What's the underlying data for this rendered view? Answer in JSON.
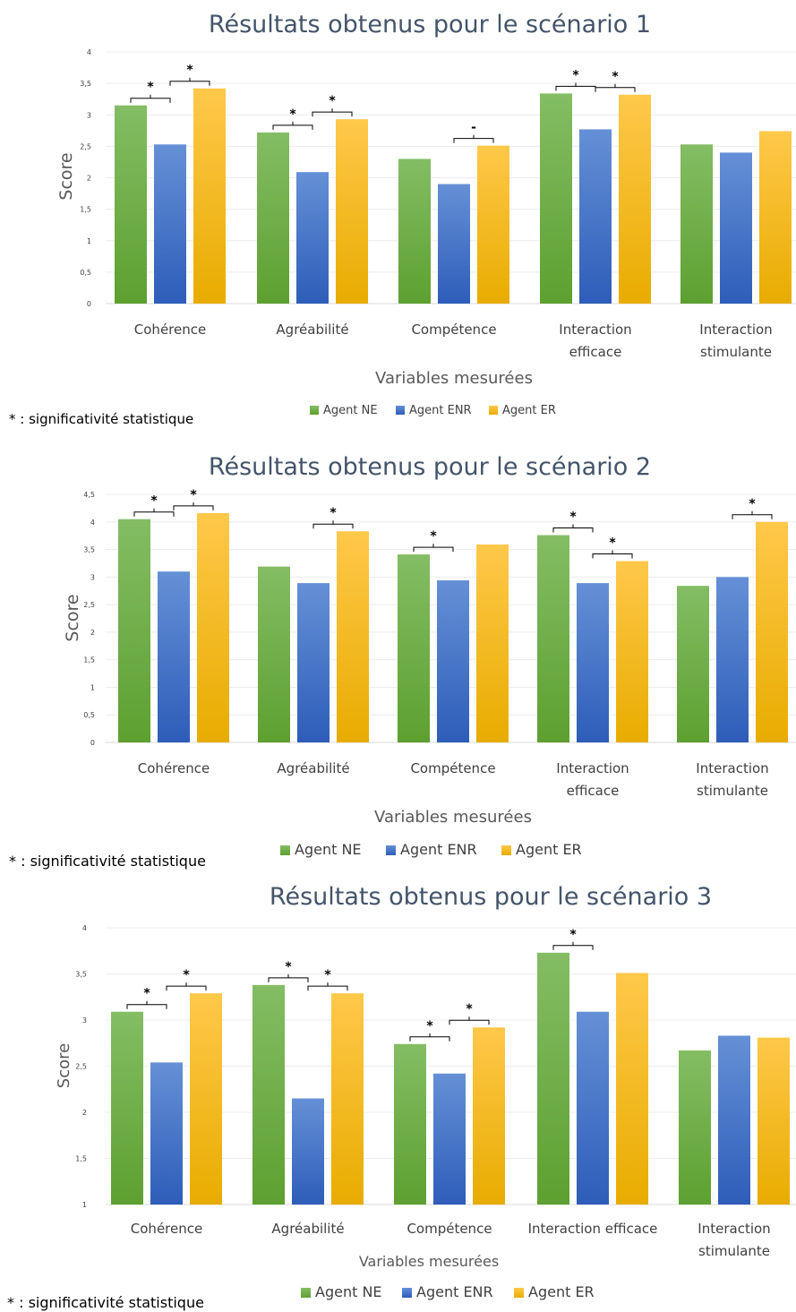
{
  "colors": {
    "agent_ne": "#70ad47",
    "agent_enr": "#4472c4",
    "agent_er": "#ffc000"
  },
  "chart_data": [
    {
      "type": "bar",
      "title": "Résultats obtenus pour le scénario 1",
      "xlabel": "Variables mesurées",
      "ylabel": "Score",
      "ylim": [
        0,
        4
      ],
      "yticks": [
        "0",
        "0,5",
        "1",
        "1,5",
        "2",
        "2,5",
        "3",
        "3,5",
        "4"
      ],
      "categories": [
        [
          "Cohérence"
        ],
        [
          "Agréabilité"
        ],
        [
          "Compétence"
        ],
        [
          "Interaction",
          "efficace"
        ],
        [
          "Interaction",
          "stimulante"
        ]
      ],
      "series": [
        {
          "name": "Agent NE",
          "values": [
            3.15,
            2.72,
            2.3,
            3.34,
            2.53
          ]
        },
        {
          "name": "Agent ENR",
          "values": [
            2.53,
            2.09,
            1.9,
            2.77,
            2.4
          ]
        },
        {
          "name": "Agent ER",
          "values": [
            3.42,
            2.93,
            2.51,
            3.32,
            2.74
          ]
        }
      ],
      "significance": [
        {
          "category": 0,
          "pair": [
            0,
            1
          ],
          "mark": "*"
        },
        {
          "category": 0,
          "pair": [
            1,
            2
          ],
          "mark": "*"
        },
        {
          "category": 1,
          "pair": [
            0,
            1
          ],
          "mark": "*"
        },
        {
          "category": 1,
          "pair": [
            1,
            2
          ],
          "mark": "*"
        },
        {
          "category": 2,
          "pair": [
            1,
            2
          ],
          "mark": "-"
        },
        {
          "category": 3,
          "pair": [
            0,
            1
          ],
          "mark": "*"
        },
        {
          "category": 3,
          "pair": [
            1,
            2
          ],
          "mark": "*"
        }
      ],
      "legend_position": "bottom",
      "note": "* : significativité statistique"
    },
    {
      "type": "bar",
      "title": "Résultats obtenus pour le scénario 2",
      "xlabel": "Variables mesurées",
      "ylabel": "Score",
      "ylim": [
        0,
        4.5
      ],
      "yticks": [
        "0",
        "0,5",
        "1",
        "1,5",
        "2",
        "2,5",
        "3",
        "3,5",
        "4",
        "4,5"
      ],
      "categories": [
        [
          "Cohérence"
        ],
        [
          "Agréabilité"
        ],
        [
          "Compétence"
        ],
        [
          "Interaction",
          "efficace"
        ],
        [
          "Interaction",
          "stimulante"
        ]
      ],
      "series": [
        {
          "name": "Agent NE",
          "values": [
            4.05,
            3.19,
            3.41,
            3.76,
            2.84
          ]
        },
        {
          "name": "Agent ENR",
          "values": [
            3.1,
            2.89,
            2.94,
            2.89,
            3.0
          ]
        },
        {
          "name": "Agent ER",
          "values": [
            4.16,
            3.83,
            3.59,
            3.29,
            4.0
          ]
        }
      ],
      "significance": [
        {
          "category": 0,
          "pair": [
            0,
            1
          ],
          "mark": "*"
        },
        {
          "category": 0,
          "pair": [
            1,
            2
          ],
          "mark": "*"
        },
        {
          "category": 1,
          "pair": [
            1,
            2
          ],
          "mark": "*"
        },
        {
          "category": 2,
          "pair": [
            0,
            1
          ],
          "mark": "*"
        },
        {
          "category": 3,
          "pair": [
            0,
            1
          ],
          "mark": "*"
        },
        {
          "category": 3,
          "pair": [
            1,
            2
          ],
          "mark": "*"
        },
        {
          "category": 4,
          "pair": [
            1,
            2
          ],
          "mark": "*"
        }
      ],
      "legend_position": "bottom",
      "note": "* : significativité statistique"
    },
    {
      "type": "bar",
      "title": "Résultats obtenus pour le scénario 3",
      "xlabel": "Variables mesurées",
      "ylabel": "Score",
      "ylim": [
        1,
        4
      ],
      "yticks": [
        "1",
        "1,5",
        "2",
        "2,5",
        "3",
        "3,5",
        "4"
      ],
      "categories": [
        [
          "Cohérence"
        ],
        [
          "Agréabilité"
        ],
        [
          "Compétence"
        ],
        [
          "Interaction efficace"
        ],
        [
          "Interaction",
          "stimulante"
        ]
      ],
      "series": [
        {
          "name": "Agent NE",
          "values": [
            3.09,
            3.38,
            2.74,
            3.73,
            2.67
          ]
        },
        {
          "name": "Agent ENR",
          "values": [
            2.54,
            2.15,
            2.42,
            3.09,
            2.83
          ]
        },
        {
          "name": "Agent ER",
          "values": [
            3.29,
            3.29,
            2.92,
            3.51,
            2.81
          ]
        }
      ],
      "significance": [
        {
          "category": 0,
          "pair": [
            0,
            1
          ],
          "mark": "*"
        },
        {
          "category": 0,
          "pair": [
            1,
            2
          ],
          "mark": "*"
        },
        {
          "category": 1,
          "pair": [
            0,
            1
          ],
          "mark": "*"
        },
        {
          "category": 1,
          "pair": [
            1,
            2
          ],
          "mark": "*"
        },
        {
          "category": 2,
          "pair": [
            0,
            1
          ],
          "mark": "*"
        },
        {
          "category": 2,
          "pair": [
            1,
            2
          ],
          "mark": "*"
        },
        {
          "category": 3,
          "pair": [
            0,
            1
          ],
          "mark": "*"
        }
      ],
      "legend_position": "bottom",
      "note": "* : significativité statistique"
    }
  ]
}
